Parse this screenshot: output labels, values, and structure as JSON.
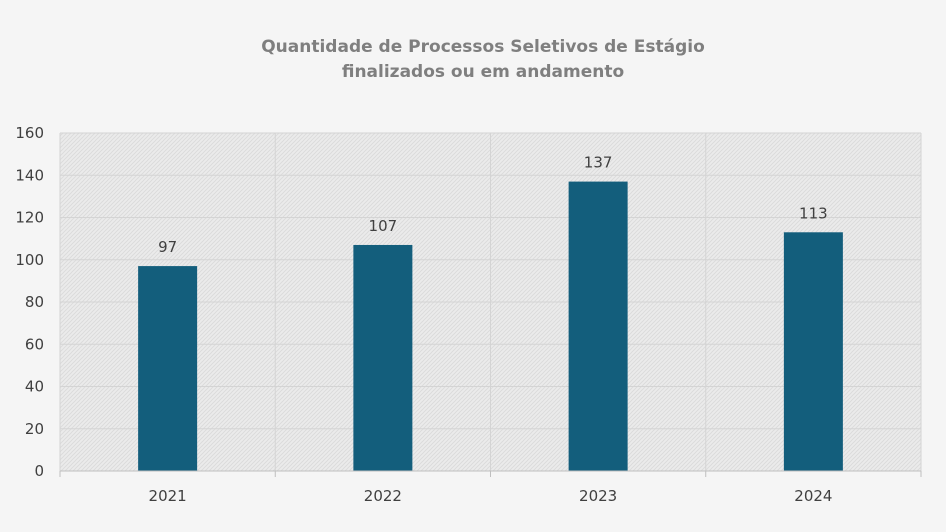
{
  "chart_data": {
    "type": "bar",
    "title_line1": "Quantidade de Processos Seletivos de Estágio",
    "title_line2": "finalizados ou em andamento",
    "categories": [
      "2021",
      "2022",
      "2023",
      "2024"
    ],
    "values": [
      97,
      107,
      137,
      113
    ],
    "data_labels": [
      "97",
      "107",
      "137",
      "113"
    ],
    "ylim": [
      0,
      160
    ],
    "yticks": [
      "0",
      "20",
      "40",
      "60",
      "80",
      "100",
      "120",
      "140",
      "160"
    ],
    "grid": true,
    "legend": "none",
    "bar_color": "#135e7c",
    "plot_background": "#ebebeb",
    "page_background": "#f5f5f5"
  }
}
